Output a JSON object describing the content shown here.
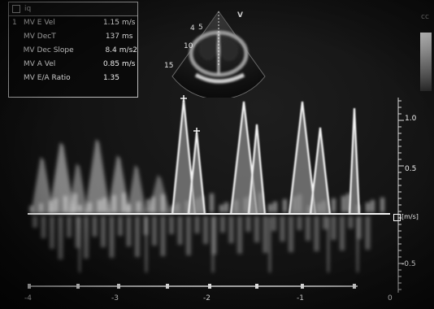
{
  "measurements": {
    "header_text": "iq",
    "index": "1",
    "rows": [
      {
        "label": "MV E Vel",
        "value": "1.15",
        "unit": "m/s"
      },
      {
        "label": "MV DecT",
        "value": "137",
        "unit": "ms"
      },
      {
        "label": "MV Dec Slope",
        "value": "8.4",
        "unit": "m/s2"
      },
      {
        "label": "MV A Vel",
        "value": "0.85",
        "unit": "m/s"
      },
      {
        "label": "MV E/A Ratio",
        "value": "1.35",
        "unit": ""
      }
    ]
  },
  "inset": {
    "labels": [
      "4",
      "5",
      "10",
      "15",
      "V"
    ]
  },
  "velocity_scale": {
    "ticks": [
      "1.0",
      "0.5",
      "-0.5"
    ],
    "baseline_unit": "[m/s]"
  },
  "time_axis": {
    "labels": [
      "-4",
      "-3",
      "-2",
      "-1",
      "0"
    ]
  },
  "overlay": {
    "gray_label": "cc"
  },
  "colors": {
    "background": "#111111",
    "signal": "#f2f2f2",
    "baseline": "#f5f5f5"
  }
}
